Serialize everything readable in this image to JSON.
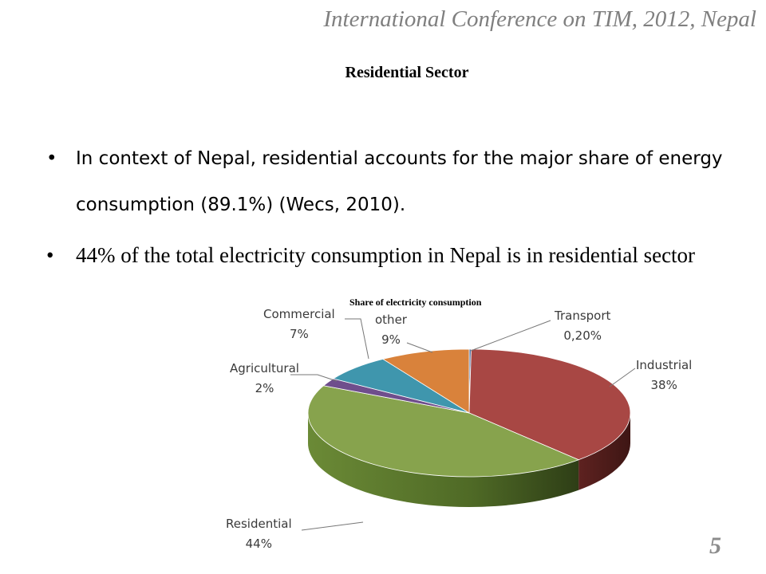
{
  "header": {
    "conference": "International Conference on TIM, 2012, Nepal"
  },
  "slide": {
    "title": "Residential Sector",
    "page_number": "5",
    "bullets": [
      {
        "marker": "•",
        "text": "In context of Nepal, residential accounts for the major share of energy consumption (89.1%) (Wecs, 2010)."
      },
      {
        "marker": "•",
        "text": "44% of the total electricity consumption in Nepal is in residential sector"
      }
    ]
  },
  "chart_data": {
    "type": "pie",
    "title": "Share of electricity consumption",
    "slices": [
      {
        "label": "Transport",
        "value_label": "0,20%",
        "value": 0.2,
        "color": "#4f6fa0"
      },
      {
        "label": "Industrial",
        "value_label": "38%",
        "value": 38,
        "color": "#a84744"
      },
      {
        "label": "Residential",
        "value_label": "44%",
        "value": 44,
        "color": "#87a34d"
      },
      {
        "label": "Agricultural",
        "value_label": "2%",
        "value": 2,
        "color": "#6f4e8c"
      },
      {
        "label": "Commercial",
        "value_label": "7%",
        "value": 7,
        "color": "#3f96ad"
      },
      {
        "label": "other",
        "value_label": "9%",
        "value": 9,
        "color": "#d9823b"
      }
    ]
  }
}
